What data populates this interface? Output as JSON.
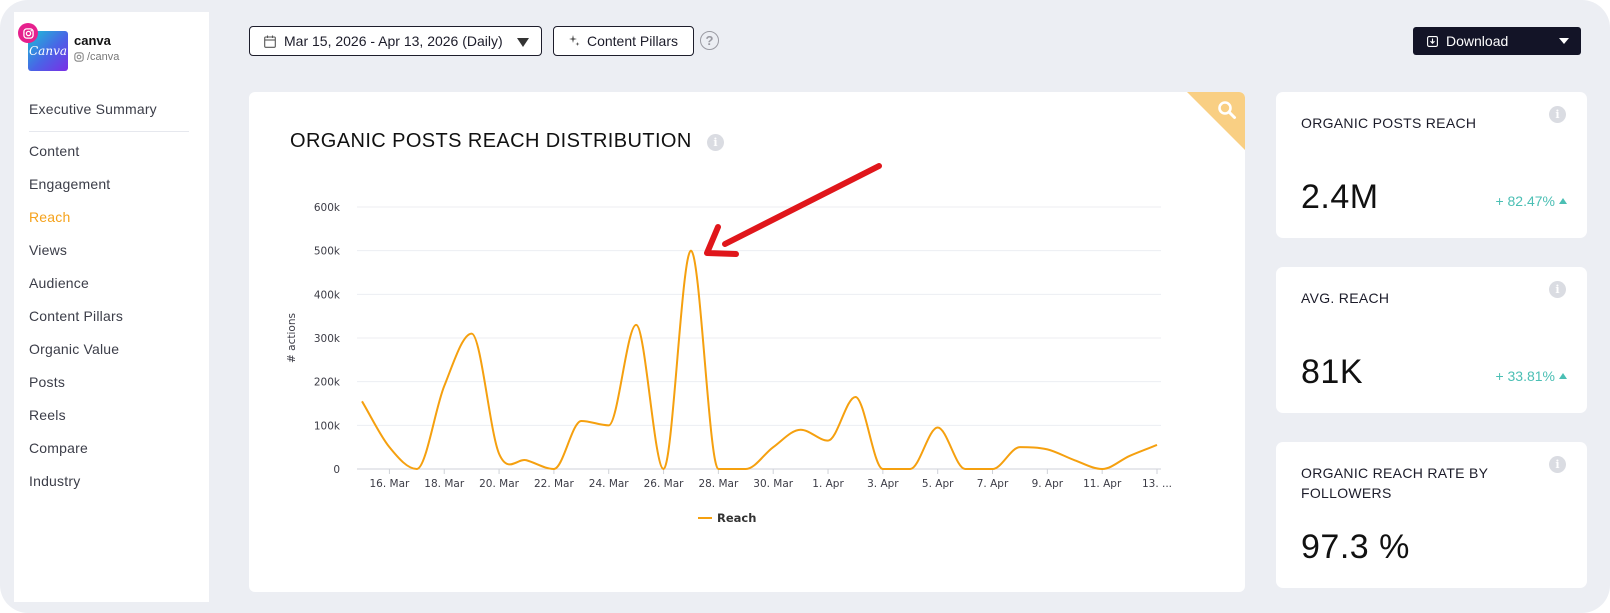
{
  "profile": {
    "name": "canva",
    "handle": "/canva",
    "logo_text": "Canva"
  },
  "sidebar": {
    "items": [
      {
        "label": "Executive Summary"
      },
      {
        "label": "Content"
      },
      {
        "label": "Engagement"
      },
      {
        "label": "Reach",
        "active": true
      },
      {
        "label": "Views"
      },
      {
        "label": "Audience"
      },
      {
        "label": "Content Pillars"
      },
      {
        "label": "Organic Value"
      },
      {
        "label": "Posts"
      },
      {
        "label": "Reels"
      },
      {
        "label": "Compare"
      },
      {
        "label": "Industry"
      }
    ]
  },
  "toolbar": {
    "date_range": "Mar 15, 2026 - Apr 13, 2026 (Daily)",
    "content_pillars_label": "Content Pillars",
    "download_label": "Download"
  },
  "chart_card": {
    "title": "ORGANIC POSTS REACH DISTRIBUTION"
  },
  "chart_data": {
    "type": "line",
    "title": "ORGANIC POSTS REACH DISTRIBUTION",
    "ylabel": "# actions",
    "xlabel": "",
    "ylim": [
      0,
      600000
    ],
    "yticks": [
      0,
      100000,
      200000,
      300000,
      400000,
      500000,
      600000
    ],
    "ytick_labels": [
      "0",
      "100k",
      "200k",
      "300k",
      "400k",
      "500k",
      "600k"
    ],
    "x": [
      "15. Mar",
      "16. Mar",
      "17. Mar",
      "18. Mar",
      "19. Mar",
      "20. Mar",
      "21. Mar",
      "22. Mar",
      "23. Mar",
      "24. Mar",
      "25. Mar",
      "26. Mar",
      "27. Mar",
      "28. Mar",
      "29. Mar",
      "30. Mar",
      "31. Mar",
      "1. Apr",
      "2. Apr",
      "3. Apr",
      "4. Apr",
      "5. Apr",
      "6. Apr",
      "7. Apr",
      "8. Apr",
      "9. Apr",
      "10. Apr",
      "11. Apr",
      "12. Apr",
      "13. Apr"
    ],
    "xtick_labels": [
      "16. Mar",
      "18. Mar",
      "20. Mar",
      "22. Mar",
      "24. Mar",
      "26. Mar",
      "28. Mar",
      "30. Mar",
      "1. Apr",
      "3. Apr",
      "5. Apr",
      "7. Apr",
      "9. Apr",
      "11. Apr",
      "13. ..."
    ],
    "series": [
      {
        "name": "Reach",
        "color": "#f5a00f",
        "values": [
          155000,
          50000,
          0,
          190000,
          310000,
          35000,
          20000,
          0,
          110000,
          100000,
          330000,
          0,
          500000,
          0,
          0,
          50000,
          90000,
          65000,
          165000,
          0,
          0,
          95000,
          0,
          0,
          50000,
          45000,
          20000,
          0,
          30000,
          55000
        ]
      }
    ],
    "legend": "bottom-center",
    "grid": true
  },
  "annotation": {
    "type": "red-arrow",
    "color": "#e0161b"
  },
  "metrics": [
    {
      "title": "ORGANIC POSTS REACH",
      "value": "2.4M",
      "change": "+ 82.47%"
    },
    {
      "title": "AVG. REACH",
      "value": "81K",
      "change": "+ 33.81%"
    },
    {
      "title": "ORGANIC REACH RATE BY FOLLOWERS",
      "value": "97.3 %",
      "change": ""
    }
  ],
  "colors": {
    "accent": "#f5a21b",
    "positive": "#4bbfb4",
    "dark_button": "#131427",
    "corner": "#f9cf83"
  }
}
